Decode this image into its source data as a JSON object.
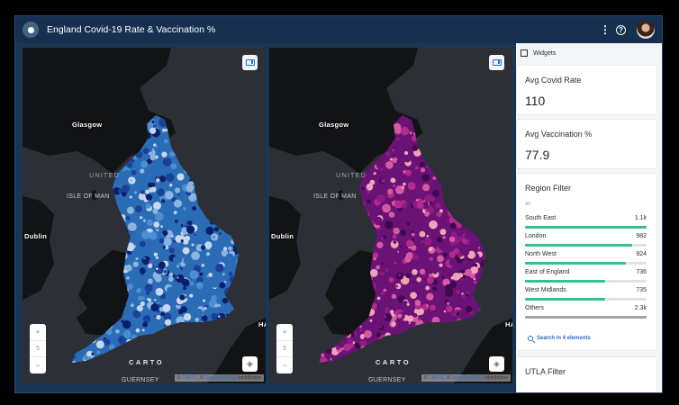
{
  "app": {
    "title": "England Covid-19 Rate & Vaccination %",
    "icons": {
      "menu": "kebab-vertical-icon",
      "help": "help-circle-icon",
      "avatar": "user-avatar"
    }
  },
  "maps": [
    {
      "id": "covid-rate-map",
      "palette": [
        "#0b1f6b",
        "#1c3f9a",
        "#2a6cb5",
        "#4a8fd0",
        "#8bb5e0",
        "#c8d6ee"
      ],
      "labels": {
        "glasgow": "Glasgow",
        "united": "UNITED",
        "isle_of_man": "ISLE OF MAN",
        "dublin": "Dublin",
        "guernsey": "GUERNSEY",
        "ha": "HA"
      },
      "zoom_in": "+",
      "zoom_level": "5",
      "zoom_out": "−",
      "carto_logo": "CARTO",
      "attribution": {
        "prefix": "© ",
        "carto": "CARTO",
        "sep": ", © ",
        "osm": "OpenStreetMap",
        "suffix": " contributors"
      }
    },
    {
      "id": "vaccination-map",
      "palette": [
        "#3d0a4f",
        "#6a1275",
        "#8e1a83",
        "#b12b8d",
        "#d65aa2",
        "#f1a3b8"
      ],
      "labels": {
        "glasgow": "Glasgow",
        "united": "UNITED",
        "isle_of_man": "ISLE OF MAN",
        "dublin": "Dublin",
        "guernsey": "GUERNSEY",
        "ha": "HA"
      },
      "zoom_in": "+",
      "zoom_level": "5",
      "zoom_out": "−",
      "carto_logo": "CARTO",
      "attribution": {
        "prefix": "© ",
        "carto": "CARTO",
        "sep": ", © ",
        "osm": "OpenStreetMap",
        "suffix": " contributors"
      }
    }
  ],
  "sidebar": {
    "header": "Widgets",
    "avg_covid": {
      "title": "Avg Covid Rate",
      "value": "110"
    },
    "avg_vacc": {
      "title": "Avg Vaccination %",
      "value": "77.9"
    },
    "region_filter": {
      "title": "Region Filter",
      "all_label": "All",
      "accent": "#2ec48a",
      "items": [
        {
          "name": "South East",
          "value": "1.1k",
          "pct": 100
        },
        {
          "name": "London",
          "value": "982",
          "pct": 88
        },
        {
          "name": "North West",
          "value": "924",
          "pct": 83
        },
        {
          "name": "East of England",
          "value": "736",
          "pct": 66
        },
        {
          "name": "West Midlands",
          "value": "735",
          "pct": 66
        },
        {
          "name": "Others",
          "value": "2.3k",
          "pct": 100,
          "gray": true
        }
      ],
      "search_label": "Search in 4 elements"
    },
    "utla_filter": {
      "title": "UTLA Filter"
    }
  }
}
